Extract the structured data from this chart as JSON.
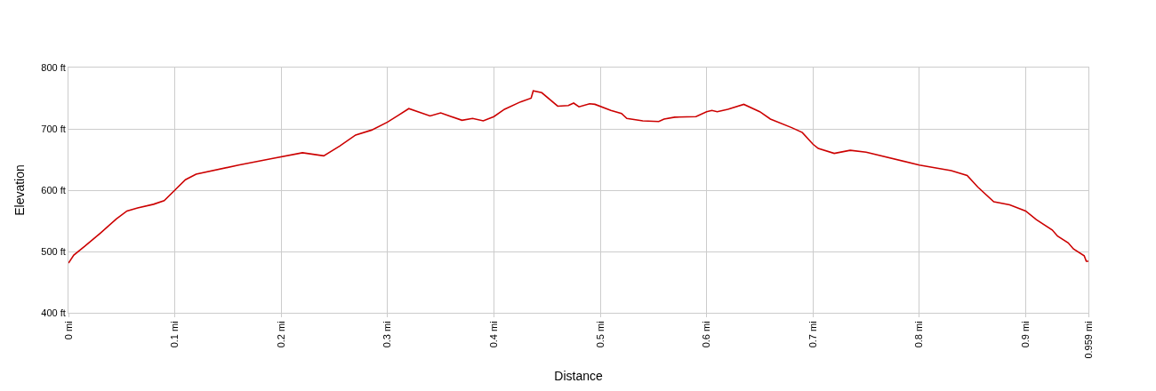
{
  "chart_data": {
    "type": "line",
    "xlabel": "Distance",
    "ylabel": "Elevation",
    "x": [
      0,
      0.005,
      0.015,
      0.03,
      0.045,
      0.055,
      0.065,
      0.08,
      0.09,
      0.1,
      0.11,
      0.12,
      0.16,
      0.19,
      0.22,
      0.24,
      0.255,
      0.27,
      0.285,
      0.3,
      0.31,
      0.32,
      0.34,
      0.35,
      0.37,
      0.38,
      0.39,
      0.4,
      0.41,
      0.425,
      0.435,
      0.437,
      0.445,
      0.46,
      0.47,
      0.475,
      0.48,
      0.49,
      0.495,
      0.51,
      0.52,
      0.525,
      0.54,
      0.555,
      0.56,
      0.57,
      0.59,
      0.6,
      0.605,
      0.61,
      0.62,
      0.635,
      0.65,
      0.66,
      0.68,
      0.69,
      0.7,
      0.705,
      0.72,
      0.735,
      0.75,
      0.8,
      0.83,
      0.845,
      0.855,
      0.87,
      0.885,
      0.9,
      0.91,
      0.925,
      0.93,
      0.94,
      0.945,
      0.955,
      0.957,
      0.959
    ],
    "series": [
      {
        "color": "#cc0000",
        "values": [
          481,
          494,
          508,
          530,
          553,
          566,
          571,
          577,
          583,
          600,
          617,
          626,
          641,
          651,
          661,
          656,
          672,
          690,
          698,
          711,
          722,
          733,
          721,
          726,
          714,
          717,
          713,
          720,
          732,
          744,
          750,
          762,
          759,
          737,
          738,
          742,
          736,
          741,
          740,
          730,
          725,
          717,
          713,
          712,
          716,
          719,
          720,
          728,
          730,
          728,
          732,
          740,
          728,
          716,
          702,
          694,
          675,
          668,
          660,
          665,
          662,
          641,
          632,
          624,
          605,
          581,
          576,
          566,
          552,
          535,
          525,
          514,
          504,
          493,
          484,
          484
        ]
      }
    ],
    "xlim": [
      0,
      0.959
    ],
    "xticks": [
      {
        "value": 0,
        "label": "0 mi"
      },
      {
        "value": 0.1,
        "label": "0.1 mi"
      },
      {
        "value": 0.2,
        "label": "0.2 mi"
      },
      {
        "value": 0.3,
        "label": "0.3 mi"
      },
      {
        "value": 0.4,
        "label": "0.4 mi"
      },
      {
        "value": 0.5,
        "label": "0.5 mi"
      },
      {
        "value": 0.6,
        "label": "0.6 mi"
      },
      {
        "value": 0.7,
        "label": "0.7 mi"
      },
      {
        "value": 0.8,
        "label": "0.8 mi"
      },
      {
        "value": 0.9,
        "label": "0.9 mi"
      },
      {
        "value": 0.959,
        "label": "0.959 mi"
      }
    ],
    "ylim": [
      400,
      800
    ],
    "yticks": [
      {
        "value": 400,
        "label": "400 ft"
      },
      {
        "value": 500,
        "label": "500 ft"
      },
      {
        "value": 600,
        "label": "600 ft"
      },
      {
        "value": 700,
        "label": "700 ft"
      },
      {
        "value": 800,
        "label": "800 ft"
      }
    ],
    "grid": true,
    "legend": false,
    "marker": "none",
    "line_style": "solid"
  }
}
